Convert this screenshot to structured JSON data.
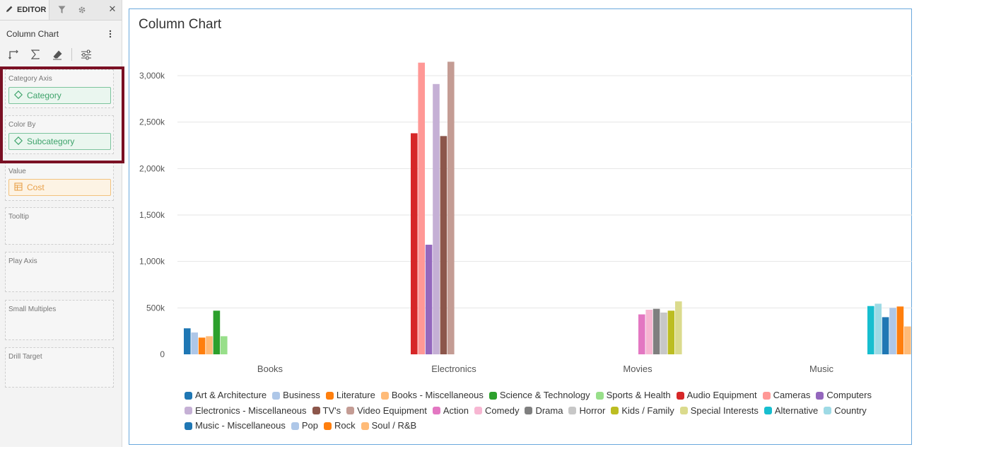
{
  "editor": {
    "tab_label": "EDITOR",
    "tabs": [
      {
        "name": "pencil-icon"
      },
      {
        "name": "filter-icon"
      },
      {
        "name": "gear-icon"
      },
      {
        "name": "close-icon"
      }
    ],
    "visual_title": "Column Chart",
    "more_glyph": "⋮",
    "close_glyph": "✕",
    "wells": {
      "category_axis": {
        "title": "Category Axis",
        "field": "Category"
      },
      "color_by": {
        "title": "Color By",
        "field": "Subcategory"
      },
      "value": {
        "title": "Value",
        "field": "Cost"
      },
      "tooltip": {
        "title": "Tooltip"
      },
      "play_axis": {
        "title": "Play Axis"
      },
      "small_multiples": {
        "title": "Small Multiples"
      },
      "drill_target": {
        "title": "Drill Target"
      }
    },
    "highlight_color": "#7a1024"
  },
  "chart_data": {
    "type": "bar",
    "title": "Column Chart",
    "xlabel": "",
    "ylabel": "",
    "ylim": [
      0,
      3000000
    ],
    "y_ticks": [
      "0",
      "500k",
      "1,000k",
      "1,500k",
      "2,000k",
      "2,500k",
      "3,000k"
    ],
    "y_tick_values": [
      0,
      500000,
      1000000,
      1500000,
      2000000,
      2500000,
      3000000
    ],
    "grid": true,
    "legend_position": "bottom",
    "categories": [
      "Books",
      "Electronics",
      "Movies",
      "Music"
    ],
    "series": [
      {
        "name": "Art & Architecture",
        "color": "#1f77b4",
        "category": "Books",
        "value": 280000
      },
      {
        "name": "Business",
        "color": "#aec7e8",
        "category": "Books",
        "value": 235000
      },
      {
        "name": "Literature",
        "color": "#ff7f0e",
        "category": "Books",
        "value": 180000
      },
      {
        "name": "Books - Miscellaneous",
        "color": "#ffbb78",
        "category": "Books",
        "value": 195000
      },
      {
        "name": "Science & Technology",
        "color": "#2ca02c",
        "category": "Books",
        "value": 470000
      },
      {
        "name": "Sports & Health",
        "color": "#98df8a",
        "category": "Books",
        "value": 195000
      },
      {
        "name": "Audio Equipment",
        "color": "#d62728",
        "category": "Electronics",
        "value": 2380000
      },
      {
        "name": "Cameras",
        "color": "#ff9896",
        "category": "Electronics",
        "value": 3140000
      },
      {
        "name": "Computers",
        "color": "#9467bd",
        "category": "Electronics",
        "value": 1180000
      },
      {
        "name": "Electronics - Miscellaneous",
        "color": "#c5b0d5",
        "category": "Electronics",
        "value": 2910000
      },
      {
        "name": "TV's",
        "color": "#8c564b",
        "category": "Electronics",
        "value": 2350000
      },
      {
        "name": "Video Equipment",
        "color": "#c49c94",
        "category": "Electronics",
        "value": 3150000
      },
      {
        "name": "Action",
        "color": "#e377c2",
        "category": "Movies",
        "value": 430000
      },
      {
        "name": "Comedy",
        "color": "#f7b6d2",
        "category": "Movies",
        "value": 480000
      },
      {
        "name": "Drama",
        "color": "#7f7f7f",
        "category": "Movies",
        "value": 490000
      },
      {
        "name": "Horror",
        "color": "#c7c7c7",
        "category": "Movies",
        "value": 450000
      },
      {
        "name": "Kids / Family",
        "color": "#bcbd22",
        "category": "Movies",
        "value": 470000
      },
      {
        "name": "Special Interests",
        "color": "#dbdb8d",
        "category": "Movies",
        "value": 570000
      },
      {
        "name": "Alternative",
        "color": "#17becf",
        "category": "Music",
        "value": 520000
      },
      {
        "name": "Country",
        "color": "#9edae5",
        "category": "Music",
        "value": 545000
      },
      {
        "name": "Music - Miscellaneous",
        "color": "#1f77b4",
        "category": "Music",
        "value": 400000
      },
      {
        "name": "Pop",
        "color": "#aec7e8",
        "category": "Music",
        "value": 500000
      },
      {
        "name": "Rock",
        "color": "#ff7f0e",
        "category": "Music",
        "value": 515000
      },
      {
        "name": "Soul / R&B",
        "color": "#ffbb78",
        "category": "Music",
        "value": 300000
      }
    ]
  }
}
